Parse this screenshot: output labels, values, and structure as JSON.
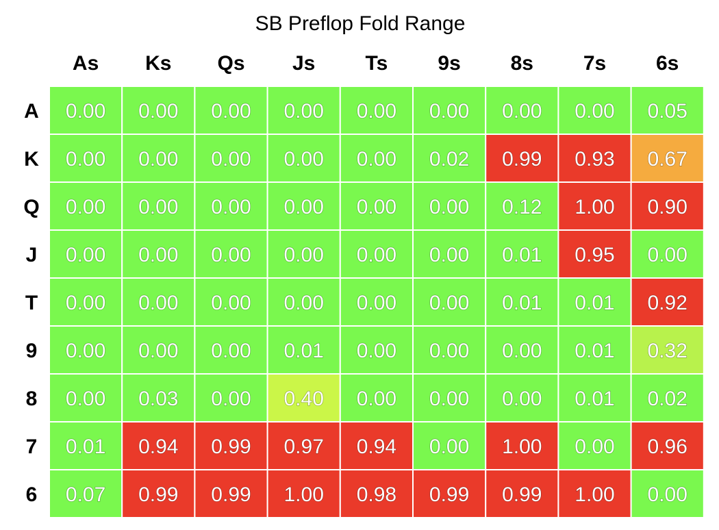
{
  "chart_data": {
    "type": "heatmap",
    "title": "SB Preflop Fold Range",
    "columns": [
      "As",
      "Ks",
      "Qs",
      "Js",
      "Ts",
      "9s",
      "8s",
      "7s",
      "6s"
    ],
    "rows": [
      "A",
      "K",
      "Q",
      "J",
      "T",
      "9",
      "8",
      "7",
      "6"
    ],
    "values": [
      [
        "0.00",
        "0.00",
        "0.00",
        "0.00",
        "0.00",
        "0.00",
        "0.00",
        "0.00",
        "0.05"
      ],
      [
        "0.00",
        "0.00",
        "0.00",
        "0.00",
        "0.00",
        "0.02",
        "0.99",
        "0.93",
        "0.67"
      ],
      [
        "0.00",
        "0.00",
        "0.00",
        "0.00",
        "0.00",
        "0.00",
        "0.12",
        "1.00",
        "0.90"
      ],
      [
        "0.00",
        "0.00",
        "0.00",
        "0.00",
        "0.00",
        "0.00",
        "0.01",
        "0.95",
        "0.00"
      ],
      [
        "0.00",
        "0.00",
        "0.00",
        "0.00",
        "0.00",
        "0.00",
        "0.01",
        "0.01",
        "0.92"
      ],
      [
        "0.00",
        "0.00",
        "0.00",
        "0.01",
        "0.00",
        "0.00",
        "0.00",
        "0.01",
        "0.32"
      ],
      [
        "0.00",
        "0.03",
        "0.00",
        "0.40",
        "0.00",
        "0.00",
        "0.00",
        "0.01",
        "0.02"
      ],
      [
        "0.01",
        "0.94",
        "0.99",
        "0.97",
        "0.94",
        "0.00",
        "1.00",
        "0.00",
        "0.96"
      ],
      [
        "0.07",
        "0.99",
        "0.99",
        "1.00",
        "0.98",
        "0.99",
        "0.99",
        "1.00",
        "0.00"
      ]
    ],
    "value_range": [
      0,
      1
    ],
    "colors": {
      "low": "#7af84e",
      "mid_low": "#cbf648",
      "mid": "#b8f24c",
      "mid_high": "#f5ab3f",
      "high": "#ea3a2a"
    }
  }
}
